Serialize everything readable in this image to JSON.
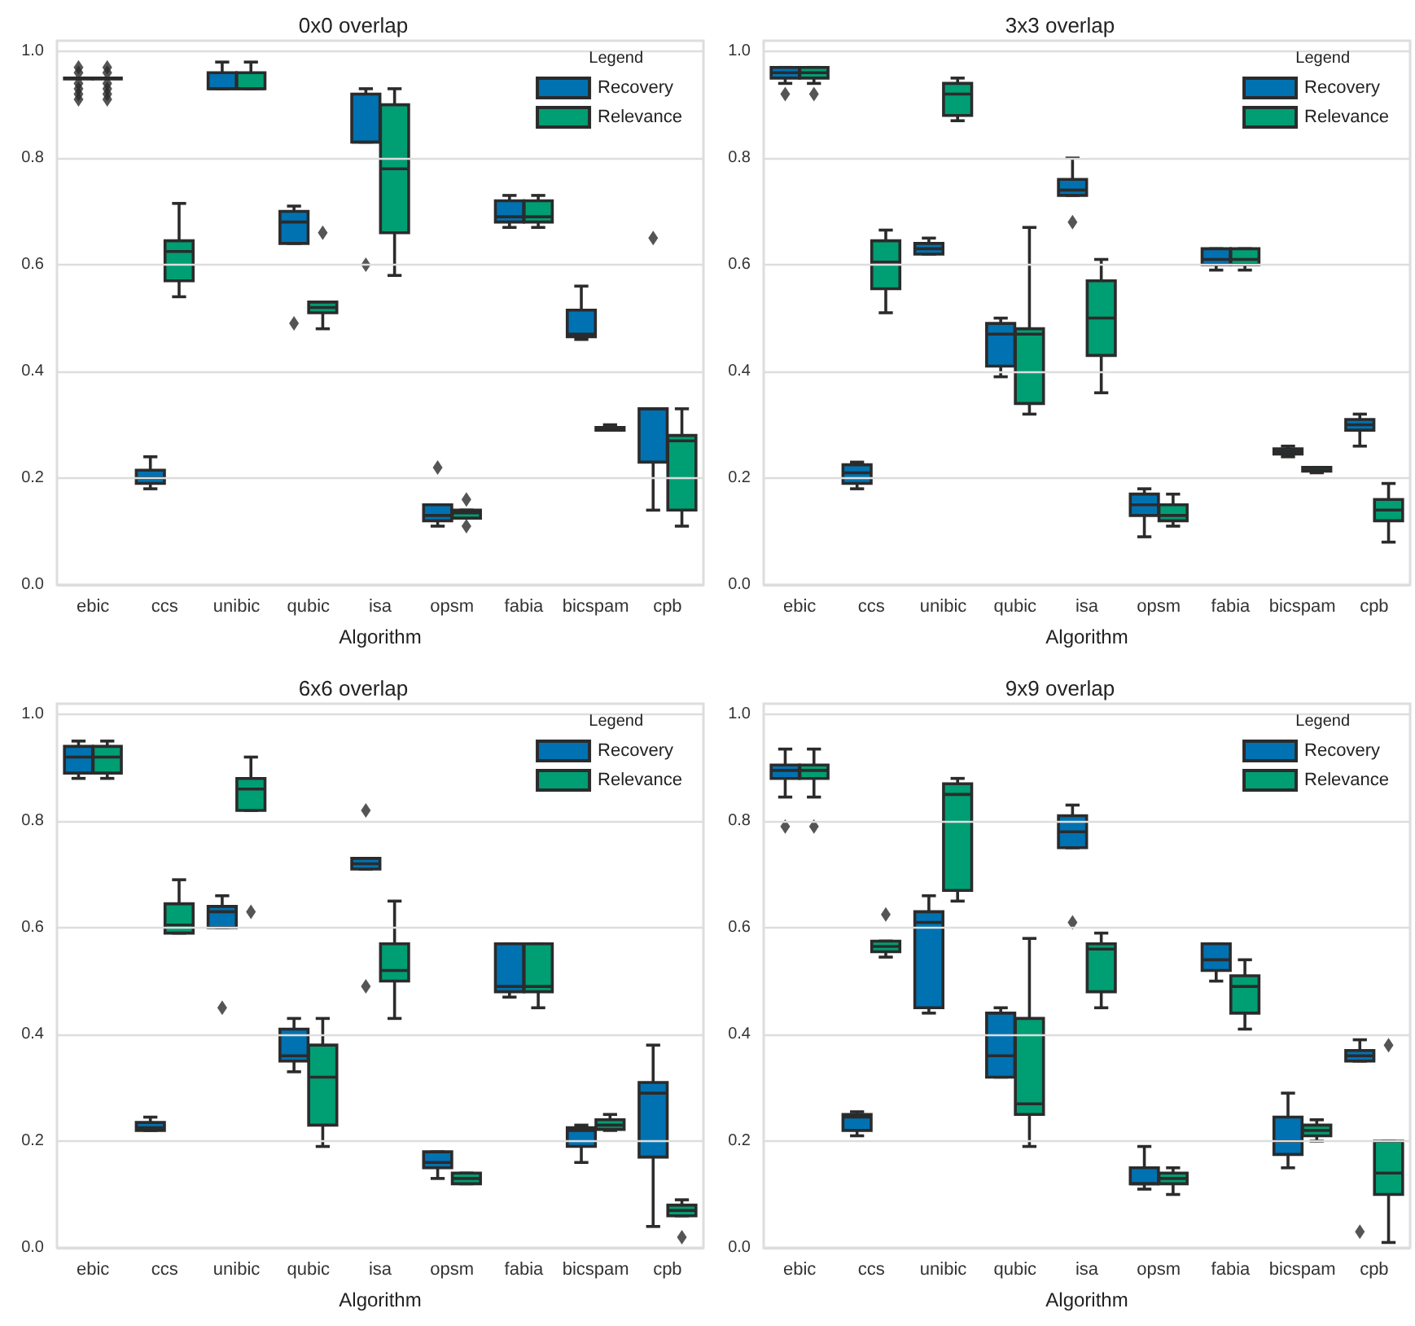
{
  "chart_data": [
    {
      "type": "box",
      "title": "0x0 overlap",
      "xlabel": "Algorithm",
      "legend_title": "Legend",
      "legend": "top right",
      "grid": "y",
      "marker": "diamond",
      "ylim": [
        0,
        1.02
      ],
      "yticks": [
        {
          "value": 0,
          "label": "0.0"
        },
        {
          "value": 0.2,
          "label": "0.2"
        },
        {
          "value": 0.4,
          "label": "0.4"
        },
        {
          "value": 0.6,
          "label": "0.6"
        },
        {
          "value": 0.8,
          "label": "0.8"
        },
        {
          "value": 1,
          "label": "1.0"
        }
      ],
      "categories": [
        "ebic",
        "ccs",
        "unibic",
        "qubic",
        "isa",
        "opsm",
        "fabia",
        "bicspam",
        "cpb"
      ],
      "series": [
        {
          "name": "Recovery",
          "color": "#0072b2",
          "boxes": [
            {
              "low": 0.95,
              "q1": 0.95,
              "median": 0.95,
              "q3": 0.95,
              "high": 0.95,
              "outliers": [
                0.91,
                0.92,
                0.93,
                0.94,
                0.96,
                0.97
              ]
            },
            {
              "low": 0.18,
              "q1": 0.19,
              "median": 0.2,
              "q3": 0.215,
              "high": 0.24
            },
            {
              "low": 0.93,
              "q1": 0.93,
              "median": 0.93,
              "q3": 0.96,
              "high": 0.98
            },
            {
              "low": 0.64,
              "q1": 0.64,
              "median": 0.68,
              "q3": 0.7,
              "high": 0.71,
              "outliers": [
                0.49
              ]
            },
            {
              "low": 0.83,
              "q1": 0.83,
              "median": 0.83,
              "q3": 0.92,
              "high": 0.93,
              "outliers": [
                0.6
              ]
            },
            {
              "low": 0.11,
              "q1": 0.12,
              "median": 0.13,
              "q3": 0.15,
              "high": 0.15,
              "outliers": [
                0.22
              ]
            },
            {
              "low": 0.67,
              "q1": 0.68,
              "median": 0.69,
              "q3": 0.72,
              "high": 0.73
            },
            {
              "low": 0.46,
              "q1": 0.465,
              "median": 0.47,
              "q3": 0.515,
              "high": 0.56
            },
            {
              "low": 0.14,
              "q1": 0.23,
              "median": 0.33,
              "q3": 0.33,
              "high": 0.33,
              "outliers": [
                0.65
              ]
            }
          ]
        },
        {
          "name": "Relevance",
          "color": "#009e73",
          "boxes": [
            {
              "low": 0.95,
              "q1": 0.95,
              "median": 0.95,
              "q3": 0.95,
              "high": 0.95,
              "outliers": [
                0.91,
                0.92,
                0.93,
                0.94,
                0.96,
                0.97
              ]
            },
            {
              "low": 0.54,
              "q1": 0.57,
              "median": 0.625,
              "q3": 0.645,
              "high": 0.715
            },
            {
              "low": 0.93,
              "q1": 0.93,
              "median": 0.93,
              "q3": 0.96,
              "high": 0.98
            },
            {
              "low": 0.48,
              "q1": 0.51,
              "median": 0.52,
              "q3": 0.53,
              "high": 0.53,
              "outliers": [
                0.66
              ]
            },
            {
              "low": 0.58,
              "q1": 0.66,
              "median": 0.78,
              "q3": 0.9,
              "high": 0.93
            },
            {
              "low": 0.125,
              "q1": 0.125,
              "median": 0.135,
              "q3": 0.14,
              "high": 0.14,
              "outliers": [
                0.11,
                0.16
              ]
            },
            {
              "low": 0.67,
              "q1": 0.68,
              "median": 0.69,
              "q3": 0.72,
              "high": 0.73
            },
            {
              "low": 0.29,
              "q1": 0.29,
              "median": 0.29,
              "q3": 0.295,
              "high": 0.3
            },
            {
              "low": 0.11,
              "q1": 0.14,
              "median": 0.27,
              "q3": 0.28,
              "high": 0.33
            }
          ]
        }
      ]
    },
    {
      "type": "box",
      "title": "3x3 overlap",
      "xlabel": "Algorithm",
      "legend_title": "Legend",
      "legend": "top right",
      "grid": "y",
      "marker": "diamond",
      "ylim": [
        0,
        1.02
      ],
      "yticks": [
        {
          "value": 0,
          "label": "0.0"
        },
        {
          "value": 0.2,
          "label": "0.2"
        },
        {
          "value": 0.4,
          "label": "0.4"
        },
        {
          "value": 0.6,
          "label": "0.6"
        },
        {
          "value": 0.8,
          "label": "0.8"
        },
        {
          "value": 1,
          "label": "1.0"
        }
      ],
      "categories": [
        "ebic",
        "ccs",
        "unibic",
        "qubic",
        "isa",
        "opsm",
        "fabia",
        "bicspam",
        "cpb"
      ],
      "series": [
        {
          "name": "Recovery",
          "color": "#0072b2",
          "boxes": [
            {
              "low": 0.94,
              "q1": 0.95,
              "median": 0.96,
              "q3": 0.97,
              "high": 0.97,
              "outliers": [
                0.92
              ]
            },
            {
              "low": 0.18,
              "q1": 0.19,
              "median": 0.21,
              "q3": 0.225,
              "high": 0.23
            },
            {
              "low": 0.62,
              "q1": 0.62,
              "median": 0.63,
              "q3": 0.64,
              "high": 0.65
            },
            {
              "low": 0.39,
              "q1": 0.41,
              "median": 0.47,
              "q3": 0.49,
              "high": 0.5
            },
            {
              "low": 0.73,
              "q1": 0.73,
              "median": 0.74,
              "q3": 0.76,
              "high": 0.8,
              "outliers": [
                0.68
              ]
            },
            {
              "low": 0.09,
              "q1": 0.13,
              "median": 0.15,
              "q3": 0.17,
              "high": 0.18
            },
            {
              "low": 0.59,
              "q1": 0.6,
              "median": 0.61,
              "q3": 0.63,
              "high": 0.63
            },
            {
              "low": 0.24,
              "q1": 0.245,
              "median": 0.25,
              "q3": 0.255,
              "high": 0.26
            },
            {
              "low": 0.26,
              "q1": 0.29,
              "median": 0.3,
              "q3": 0.31,
              "high": 0.32
            }
          ]
        },
        {
          "name": "Relevance",
          "color": "#009e73",
          "boxes": [
            {
              "low": 0.94,
              "q1": 0.95,
              "median": 0.96,
              "q3": 0.97,
              "high": 0.97,
              "outliers": [
                0.92
              ]
            },
            {
              "low": 0.51,
              "q1": 0.555,
              "median": 0.605,
              "q3": 0.645,
              "high": 0.665
            },
            {
              "low": 0.87,
              "q1": 0.88,
              "median": 0.92,
              "q3": 0.94,
              "high": 0.95
            },
            {
              "low": 0.32,
              "q1": 0.34,
              "median": 0.47,
              "q3": 0.48,
              "high": 0.67
            },
            {
              "low": 0.36,
              "q1": 0.43,
              "median": 0.5,
              "q3": 0.57,
              "high": 0.61
            },
            {
              "low": 0.11,
              "q1": 0.12,
              "median": 0.13,
              "q3": 0.15,
              "high": 0.17
            },
            {
              "low": 0.59,
              "q1": 0.6,
              "median": 0.61,
              "q3": 0.63,
              "high": 0.63
            },
            {
              "low": 0.21,
              "q1": 0.213,
              "median": 0.215,
              "q3": 0.22,
              "high": 0.22
            },
            {
              "low": 0.08,
              "q1": 0.12,
              "median": 0.14,
              "q3": 0.16,
              "high": 0.19
            }
          ]
        }
      ]
    },
    {
      "type": "box",
      "title": "6x6 overlap",
      "xlabel": "Algorithm",
      "legend_title": "Legend",
      "legend": "top right",
      "grid": "y",
      "marker": "diamond",
      "ylim": [
        0,
        1.02
      ],
      "yticks": [
        {
          "value": 0,
          "label": "0.0"
        },
        {
          "value": 0.2,
          "label": "0.2"
        },
        {
          "value": 0.4,
          "label": "0.4"
        },
        {
          "value": 0.6,
          "label": "0.6"
        },
        {
          "value": 0.8,
          "label": "0.8"
        },
        {
          "value": 1,
          "label": "1.0"
        }
      ],
      "categories": [
        "ebic",
        "ccs",
        "unibic",
        "qubic",
        "isa",
        "opsm",
        "fabia",
        "bicspam",
        "cpb"
      ],
      "series": [
        {
          "name": "Recovery",
          "color": "#0072b2",
          "boxes": [
            {
              "low": 0.88,
              "q1": 0.89,
              "median": 0.92,
              "q3": 0.94,
              "high": 0.95
            },
            {
              "low": 0.22,
              "q1": 0.22,
              "median": 0.225,
              "q3": 0.235,
              "high": 0.245
            },
            {
              "low": 0.6,
              "q1": 0.6,
              "median": 0.63,
              "q3": 0.64,
              "high": 0.66,
              "outliers": [
                0.45
              ]
            },
            {
              "low": 0.33,
              "q1": 0.35,
              "median": 0.36,
              "q3": 0.41,
              "high": 0.43
            },
            {
              "low": 0.71,
              "q1": 0.71,
              "median": 0.72,
              "q3": 0.73,
              "high": 0.73,
              "outliers": [
                0.49,
                0.82
              ]
            },
            {
              "low": 0.13,
              "q1": 0.15,
              "median": 0.16,
              "q3": 0.18,
              "high": 0.18
            },
            {
              "low": 0.47,
              "q1": 0.48,
              "median": 0.49,
              "q3": 0.57,
              "high": 0.57
            },
            {
              "low": 0.16,
              "q1": 0.19,
              "median": 0.22,
              "q3": 0.225,
              "high": 0.23
            },
            {
              "low": 0.04,
              "q1": 0.17,
              "median": 0.29,
              "q3": 0.31,
              "high": 0.38
            }
          ]
        },
        {
          "name": "Relevance",
          "color": "#009e73",
          "boxes": [
            {
              "low": 0.88,
              "q1": 0.89,
              "median": 0.92,
              "q3": 0.94,
              "high": 0.95
            },
            {
              "low": 0.59,
              "q1": 0.59,
              "median": 0.605,
              "q3": 0.645,
              "high": 0.69
            },
            {
              "low": 0.82,
              "q1": 0.82,
              "median": 0.86,
              "q3": 0.88,
              "high": 0.92,
              "outliers": [
                0.63
              ]
            },
            {
              "low": 0.19,
              "q1": 0.23,
              "median": 0.32,
              "q3": 0.38,
              "high": 0.43
            },
            {
              "low": 0.43,
              "q1": 0.5,
              "median": 0.52,
              "q3": 0.57,
              "high": 0.65
            },
            {
              "low": 0.12,
              "q1": 0.12,
              "median": 0.13,
              "q3": 0.14,
              "high": 0.14
            },
            {
              "low": 0.45,
              "q1": 0.48,
              "median": 0.49,
              "q3": 0.57,
              "high": 0.57
            },
            {
              "low": 0.22,
              "q1": 0.222,
              "median": 0.23,
              "q3": 0.24,
              "high": 0.25
            },
            {
              "low": 0.06,
              "q1": 0.06,
              "median": 0.07,
              "q3": 0.08,
              "high": 0.09,
              "outliers": [
                0.02
              ]
            }
          ]
        }
      ]
    },
    {
      "type": "box",
      "title": "9x9 overlap",
      "xlabel": "Algorithm",
      "legend_title": "Legend",
      "legend": "top right",
      "grid": "y",
      "marker": "diamond",
      "ylim": [
        0,
        1.02
      ],
      "yticks": [
        {
          "value": 0,
          "label": "0.0"
        },
        {
          "value": 0.2,
          "label": "0.2"
        },
        {
          "value": 0.4,
          "label": "0.4"
        },
        {
          "value": 0.6,
          "label": "0.6"
        },
        {
          "value": 0.8,
          "label": "0.8"
        },
        {
          "value": 1,
          "label": "1.0"
        }
      ],
      "categories": [
        "ebic",
        "ccs",
        "unibic",
        "qubic",
        "isa",
        "opsm",
        "fabia",
        "bicspam",
        "cpb"
      ],
      "series": [
        {
          "name": "Recovery",
          "color": "#0072b2",
          "boxes": [
            {
              "low": 0.845,
              "q1": 0.88,
              "median": 0.895,
              "q3": 0.905,
              "high": 0.935,
              "outliers": [
                0.79
              ]
            },
            {
              "low": 0.21,
              "q1": 0.22,
              "median": 0.245,
              "q3": 0.25,
              "high": 0.255
            },
            {
              "low": 0.44,
              "q1": 0.45,
              "median": 0.61,
              "q3": 0.63,
              "high": 0.66
            },
            {
              "low": 0.32,
              "q1": 0.32,
              "median": 0.36,
              "q3": 0.44,
              "high": 0.45
            },
            {
              "low": 0.75,
              "q1": 0.75,
              "median": 0.78,
              "q3": 0.81,
              "high": 0.83,
              "outliers": [
                0.61
              ]
            },
            {
              "low": 0.11,
              "q1": 0.12,
              "median": 0.12,
              "q3": 0.15,
              "high": 0.19
            },
            {
              "low": 0.5,
              "q1": 0.52,
              "median": 0.54,
              "q3": 0.57,
              "high": 0.57
            },
            {
              "low": 0.15,
              "q1": 0.175,
              "median": 0.2,
              "q3": 0.245,
              "high": 0.29
            },
            {
              "low": 0.35,
              "q1": 0.35,
              "median": 0.36,
              "q3": 0.37,
              "high": 0.39,
              "outliers": [
                0.03
              ]
            }
          ]
        },
        {
          "name": "Relevance",
          "color": "#009e73",
          "boxes": [
            {
              "low": 0.845,
              "q1": 0.88,
              "median": 0.895,
              "q3": 0.905,
              "high": 0.935,
              "outliers": [
                0.79
              ]
            },
            {
              "low": 0.545,
              "q1": 0.555,
              "median": 0.565,
              "q3": 0.575,
              "high": 0.575,
              "outliers": [
                0.625
              ]
            },
            {
              "low": 0.65,
              "q1": 0.67,
              "median": 0.85,
              "q3": 0.87,
              "high": 0.88
            },
            {
              "low": 0.19,
              "q1": 0.25,
              "median": 0.27,
              "q3": 0.43,
              "high": 0.58
            },
            {
              "low": 0.45,
              "q1": 0.48,
              "median": 0.56,
              "q3": 0.57,
              "high": 0.59
            },
            {
              "low": 0.1,
              "q1": 0.12,
              "median": 0.13,
              "q3": 0.14,
              "high": 0.15
            },
            {
              "low": 0.41,
              "q1": 0.44,
              "median": 0.49,
              "q3": 0.51,
              "high": 0.54
            },
            {
              "low": 0.2,
              "q1": 0.21,
              "median": 0.22,
              "q3": 0.23,
              "high": 0.24
            },
            {
              "low": 0.01,
              "q1": 0.1,
              "median": 0.14,
              "q3": 0.2,
              "high": 0.2,
              "outliers": [
                0.38
              ]
            }
          ]
        }
      ]
    }
  ]
}
